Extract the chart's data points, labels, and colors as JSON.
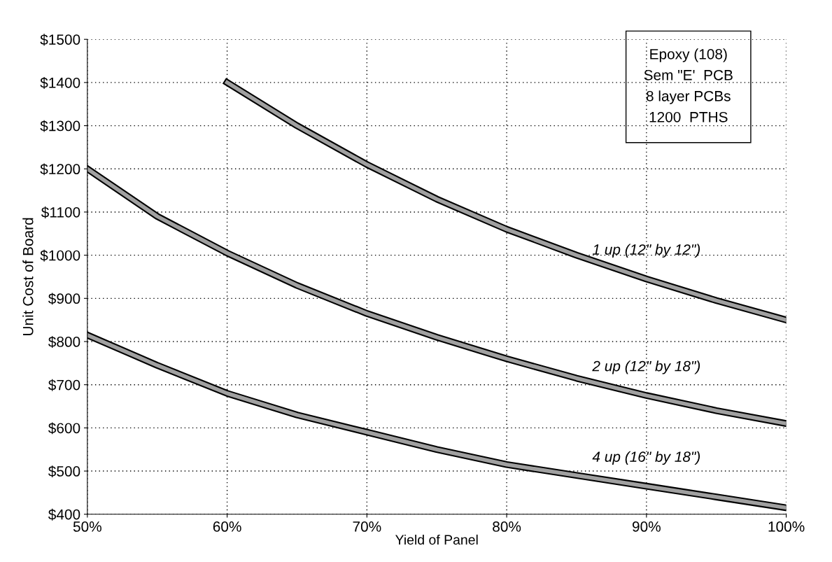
{
  "chart_data": {
    "type": "line",
    "xlabel": "Yield of Panel",
    "ylabel": "Unit Cost of Board",
    "series": [
      {
        "name": "1 up (12\" by 12\")",
        "color": "#a0a0a0",
        "x": [
          60,
          65,
          70,
          75,
          80,
          85,
          90,
          95,
          100
        ],
        "values": [
          1400,
          1300,
          1210,
          1130,
          1060,
          1000,
          945,
          895,
          850
        ]
      },
      {
        "name": "2 up (12\" by 18\")",
        "color": "#a0a0a0",
        "x": [
          50,
          55,
          60,
          65,
          70,
          75,
          80,
          85,
          90,
          95,
          100
        ],
        "values": [
          1200,
          1090,
          1005,
          930,
          865,
          810,
          760,
          715,
          675,
          640,
          610
        ]
      },
      {
        "name": "4 up (16\" by 18\")",
        "color": "#a0a0a0",
        "x": [
          50,
          55,
          60,
          65,
          70,
          75,
          80,
          85,
          90,
          95,
          100
        ],
        "values": [
          815,
          745,
          680,
          630,
          590,
          550,
          515,
          490,
          465,
          440,
          415
        ]
      }
    ],
    "annotations": [
      "Epoxy (108)\nSem \"E'  PCB\n8 layer PCBs\n1200  PTHS"
    ],
    "xlim": [
      50,
      100
    ],
    "ylim": [
      400,
      1500
    ],
    "xticks": [
      {
        "value": 50,
        "label": "50%"
      },
      {
        "value": 60,
        "label": "60%"
      },
      {
        "value": 70,
        "label": "70%"
      },
      {
        "value": 80,
        "label": "80%"
      },
      {
        "value": 90,
        "label": "90%"
      },
      {
        "value": 100,
        "label": "100%"
      }
    ],
    "yticks": [
      {
        "value": 400,
        "label": "$400"
      },
      {
        "value": 500,
        "label": "$500"
      },
      {
        "value": 600,
        "label": "$600"
      },
      {
        "value": 700,
        "label": "$700"
      },
      {
        "value": 800,
        "label": "$800"
      },
      {
        "value": 900,
        "label": "$900"
      },
      {
        "value": 1000,
        "label": "$1000"
      },
      {
        "value": 1100,
        "label": "$1100"
      },
      {
        "value": 1200,
        "label": "$1200"
      },
      {
        "value": 1300,
        "label": "$1300"
      },
      {
        "value": 1400,
        "label": "$1400"
      },
      {
        "value": 1500,
        "label": "$1500"
      }
    ],
    "grid": true,
    "marker": "none",
    "line_style": "solid"
  }
}
